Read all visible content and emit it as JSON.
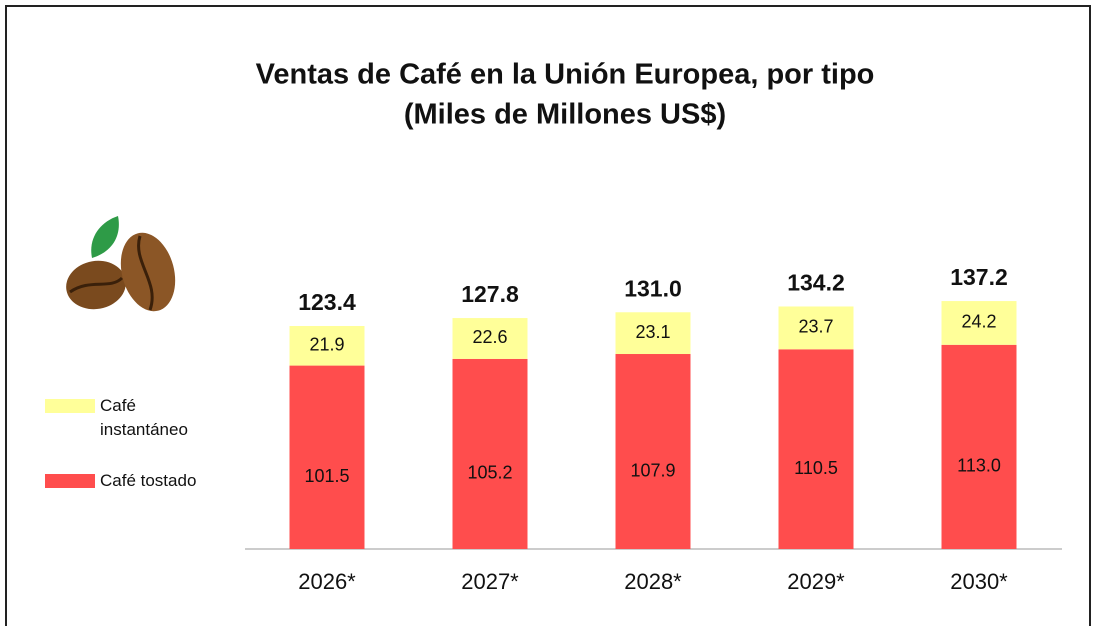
{
  "chart_data": {
    "type": "stacked-bar",
    "title": "Ventas de Café en la Unión Europea, por tipo",
    "subtitle": "(Miles de Millones US$)",
    "categories": [
      "2026*",
      "2027*",
      "2028*",
      "2029*",
      "2030*"
    ],
    "series": [
      {
        "name": "Café tostado",
        "color": "#ff4d4d",
        "values": [
          101.5,
          105.2,
          107.9,
          110.5,
          113.0
        ],
        "value_labels": [
          "101.5",
          "105.2",
          "107.9",
          "110.5",
          "113.0"
        ]
      },
      {
        "name": "Café instantáneo",
        "color": "#ffff99",
        "values": [
          21.9,
          22.6,
          23.1,
          23.7,
          24.2
        ],
        "value_labels": [
          "21.9",
          "22.6",
          "23.1",
          "23.7",
          "24.2"
        ]
      }
    ],
    "totals": [
      123.4,
      127.8,
      131.0,
      134.2,
      137.2
    ],
    "total_labels": [
      "123.4",
      "127.8",
      "131.0",
      "134.2",
      "137.2"
    ],
    "ylim": [
      0,
      140
    ],
    "legend": "left"
  }
}
